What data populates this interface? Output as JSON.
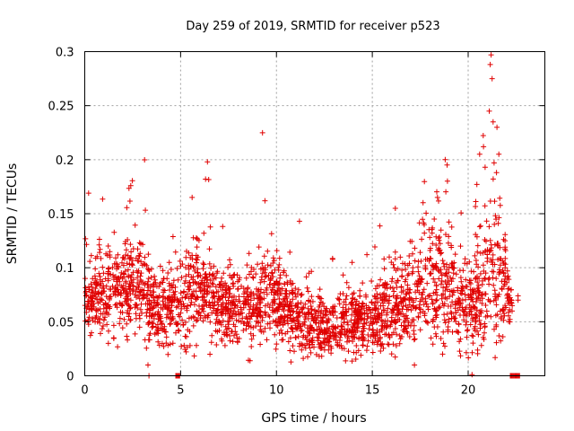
{
  "chart_data": {
    "type": "scatter",
    "title": "Day 259 of 2019, SRMTID for receiver p523",
    "xlabel": "GPS time / hours",
    "ylabel": "SRMTID / TECUs",
    "xlim": [
      0,
      24
    ],
    "ylim": [
      0,
      0.3
    ],
    "x_ticks": [
      0,
      5,
      10,
      15,
      20
    ],
    "x_tick_labels": [
      "0",
      "5",
      "10",
      "15",
      "20"
    ],
    "y_ticks": [
      0,
      0.05,
      0.1,
      0.15,
      0.2,
      0.25,
      0.3
    ],
    "y_tick_labels": [
      "0",
      "0.05",
      "0.1",
      "0.15",
      "0.2",
      "0.25",
      "0.3"
    ],
    "grid": true,
    "marker": "+",
    "color": "#e00000",
    "series": [
      {
        "name": "SRMTID",
        "profile_hours": [
          0.0,
          0.5,
          1.0,
          2.0,
          2.5,
          3.0,
          3.5,
          4.0,
          5.0,
          5.5,
          6.0,
          6.5,
          7.0,
          8.0,
          9.0,
          9.5,
          10.0,
          11.0,
          12.0,
          13.0,
          14.0,
          15.0,
          16.0,
          17.0,
          18.0,
          18.5,
          19.0,
          19.5,
          20.0,
          20.5,
          21.0,
          21.5,
          22.0,
          22.3
        ],
        "profile_median": [
          0.075,
          0.07,
          0.075,
          0.08,
          0.085,
          0.08,
          0.065,
          0.06,
          0.065,
          0.08,
          0.08,
          0.075,
          0.065,
          0.06,
          0.06,
          0.075,
          0.07,
          0.055,
          0.045,
          0.045,
          0.05,
          0.055,
          0.06,
          0.07,
          0.085,
          0.09,
          0.075,
          0.065,
          0.065,
          0.075,
          0.095,
          0.1,
          0.075,
          0.06
        ],
        "profile_spread": [
          0.015,
          0.015,
          0.02,
          0.02,
          0.025,
          0.02,
          0.018,
          0.018,
          0.022,
          0.025,
          0.022,
          0.02,
          0.018,
          0.018,
          0.02,
          0.022,
          0.02,
          0.016,
          0.014,
          0.014,
          0.015,
          0.016,
          0.02,
          0.022,
          0.028,
          0.03,
          0.025,
          0.02,
          0.02,
          0.025,
          0.035,
          0.04,
          0.02,
          0.012
        ],
        "peak_points": [
          [
            0.2,
            0.169
          ],
          [
            2.4,
            0.176
          ],
          [
            3.3,
            0.01
          ],
          [
            3.35,
            0.0
          ],
          [
            6.3,
            0.182
          ],
          [
            6.4,
            0.198
          ],
          [
            5.6,
            0.165
          ],
          [
            9.4,
            0.162
          ],
          [
            11.2,
            0.143
          ],
          [
            16.2,
            0.155
          ],
          [
            17.2,
            0.01
          ],
          [
            18.4,
            0.165
          ],
          [
            18.8,
            0.2
          ],
          [
            18.9,
            0.195
          ],
          [
            19.6,
            0.12
          ],
          [
            20.2,
            0.001
          ],
          [
            20.8,
            0.212
          ],
          [
            20.6,
            0.205
          ],
          [
            21.1,
            0.245
          ],
          [
            21.2,
            0.297
          ],
          [
            21.15,
            0.288
          ],
          [
            21.25,
            0.275
          ],
          [
            21.3,
            0.235
          ],
          [
            21.5,
            0.23
          ],
          [
            21.6,
            0.205
          ],
          [
            21.35,
            0.197
          ],
          [
            22.6,
            0.074
          ],
          [
            22.6,
            0.07
          ]
        ],
        "zero_bars_hours": [
          [
            4.75,
            4.95
          ],
          [
            22.2,
            22.7
          ]
        ]
      }
    ]
  }
}
